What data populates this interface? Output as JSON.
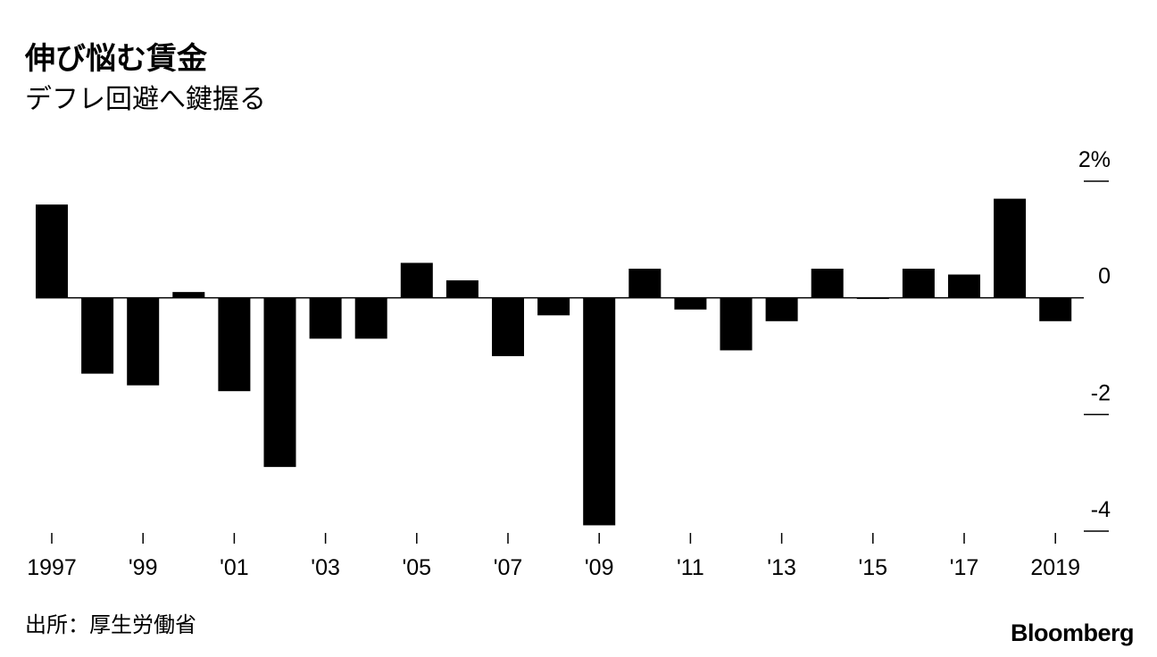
{
  "chart_data": {
    "type": "bar",
    "title": "伸び悩む賃金",
    "subtitle": "デフレ回避へ鍵握る",
    "source": "出所：厚生労働省",
    "brand": "Bloomberg",
    "x": [
      1997,
      1998,
      1999,
      2000,
      2001,
      2002,
      2003,
      2004,
      2005,
      2006,
      2007,
      2008,
      2009,
      2010,
      2011,
      2012,
      2013,
      2014,
      2015,
      2016,
      2017,
      2018,
      2019
    ],
    "values": [
      1.6,
      -1.3,
      -1.5,
      0.1,
      -1.6,
      -2.9,
      -0.7,
      -0.7,
      0.6,
      0.3,
      -1.0,
      -0.3,
      -3.9,
      0.5,
      -0.2,
      -0.9,
      -0.4,
      0.5,
      0.0,
      0.5,
      0.4,
      1.7,
      -0.4
    ],
    "ylim": [
      -4,
      2
    ],
    "y_ticks": [
      {
        "value": 2,
        "label": "2%"
      },
      {
        "value": 0,
        "label": "0"
      },
      {
        "value": -2,
        "label": "-2"
      },
      {
        "value": -4,
        "label": "-4"
      }
    ],
    "x_ticks": [
      {
        "value": 1997,
        "label": "1997"
      },
      {
        "value": 1999,
        "label": "'99"
      },
      {
        "value": 2001,
        "label": "'01"
      },
      {
        "value": 2003,
        "label": "'03"
      },
      {
        "value": 2005,
        "label": "'05"
      },
      {
        "value": 2007,
        "label": "'07"
      },
      {
        "value": 2009,
        "label": "'09"
      },
      {
        "value": 2011,
        "label": "'11"
      },
      {
        "value": 2013,
        "label": "'13"
      },
      {
        "value": 2015,
        "label": "'15"
      },
      {
        "value": 2017,
        "label": "'17"
      },
      {
        "value": 2019,
        "label": "2019"
      }
    ],
    "bar_color": "#000000",
    "grid": false,
    "legend": "none"
  }
}
